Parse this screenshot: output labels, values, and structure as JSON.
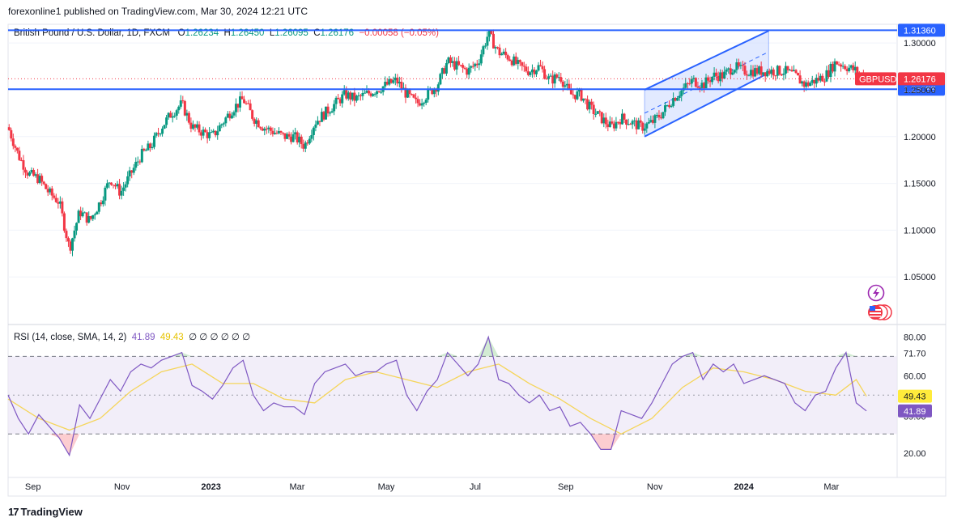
{
  "header": {
    "published": "forexonline1 published on TradingView.com, Mar 30, 2024 12:21 UTC"
  },
  "legend": {
    "title": "British Pound / U.S. Dollar, 1D, FXCM",
    "o_label": "O",
    "o": "1.26234",
    "h_label": "H",
    "h": "1.26450",
    "l_label": "L",
    "l": "1.26095",
    "c_label": "C",
    "c": "1.26176",
    "change": "−0.00058 (−0.05%)"
  },
  "rsi_legend": {
    "title": "RSI (14, close, SMA, 14, 2)",
    "rsi": "41.89",
    "sma": "49.43",
    "icons": "∅ ∅ ∅     ∅ ∅ ∅"
  },
  "footer": {
    "brand": "TradingView",
    "mark": "17"
  },
  "colors": {
    "up": "#089981",
    "down": "#f23645",
    "level_line": "#2962ff",
    "channel_fill": "#cfdcff",
    "rsi_line": "#7e57c2",
    "sma_line": "#f5d55a",
    "rsi_band": "#ede7f6"
  },
  "icons": [
    "lightning-icon",
    "us-flag-icon"
  ],
  "chart_data": [
    {
      "type": "candlestick",
      "symbol": "GBPUSD",
      "price_axis": [
        "1.30000",
        "1.25000",
        "1.20000",
        "1.15000",
        "1.10000",
        "1.05000"
      ],
      "ylim": [
        1.0,
        1.32
      ],
      "levels": [
        {
          "label": "1.31360",
          "value": 1.3136
        },
        {
          "label": "1.25055",
          "value": 1.25055
        }
      ],
      "last_price": {
        "symbol": "GBPUSD",
        "label": "1.26176",
        "value": 1.26176
      },
      "time_axis": [
        "Sep",
        "Nov",
        "2023",
        "Mar",
        "May",
        "Jul",
        "Sep",
        "Nov",
        "2024",
        "Mar"
      ],
      "time_range": [
        "2022-08-15",
        "2024-04-15"
      ],
      "close_path": [
        [
          "2022-08-15",
          1.21
        ],
        [
          "2022-08-22",
          1.18
        ],
        [
          "2022-08-29",
          1.16
        ],
        [
          "2022-09-05",
          1.155
        ],
        [
          "2022-09-12",
          1.14
        ],
        [
          "2022-09-19",
          1.13
        ],
        [
          "2022-09-26",
          1.08
        ],
        [
          "2022-10-03",
          1.12
        ],
        [
          "2022-10-10",
          1.11
        ],
        [
          "2022-10-17",
          1.13
        ],
        [
          "2022-10-24",
          1.155
        ],
        [
          "2022-10-31",
          1.14
        ],
        [
          "2022-11-07",
          1.16
        ],
        [
          "2022-11-14",
          1.18
        ],
        [
          "2022-11-21",
          1.19
        ],
        [
          "2022-11-28",
          1.21
        ],
        [
          "2022-12-05",
          1.225
        ],
        [
          "2022-12-12",
          1.235
        ],
        [
          "2022-12-19",
          1.21
        ],
        [
          "2022-12-26",
          1.205
        ],
        [
          "2023-01-02",
          1.2
        ],
        [
          "2023-01-09",
          1.215
        ],
        [
          "2023-01-16",
          1.23
        ],
        [
          "2023-01-23",
          1.24
        ],
        [
          "2023-01-30",
          1.22
        ],
        [
          "2023-02-06",
          1.21
        ],
        [
          "2023-02-13",
          1.205
        ],
        [
          "2023-02-20",
          1.2
        ],
        [
          "2023-02-27",
          1.2
        ],
        [
          "2023-03-06",
          1.19
        ],
        [
          "2023-03-13",
          1.215
        ],
        [
          "2023-03-20",
          1.225
        ],
        [
          "2023-03-27",
          1.235
        ],
        [
          "2023-04-03",
          1.245
        ],
        [
          "2023-04-10",
          1.24
        ],
        [
          "2023-04-17",
          1.245
        ],
        [
          "2023-04-24",
          1.25
        ],
        [
          "2023-05-01",
          1.255
        ],
        [
          "2023-05-08",
          1.26
        ],
        [
          "2023-05-15",
          1.245
        ],
        [
          "2023-05-22",
          1.235
        ],
        [
          "2023-05-29",
          1.245
        ],
        [
          "2023-06-05",
          1.255
        ],
        [
          "2023-06-12",
          1.28
        ],
        [
          "2023-06-19",
          1.275
        ],
        [
          "2023-06-26",
          1.27
        ],
        [
          "2023-07-03",
          1.28
        ],
        [
          "2023-07-10",
          1.31
        ],
        [
          "2023-07-17",
          1.29
        ],
        [
          "2023-07-24",
          1.285
        ],
        [
          "2023-07-31",
          1.275
        ],
        [
          "2023-08-07",
          1.27
        ],
        [
          "2023-08-14",
          1.275
        ],
        [
          "2023-08-21",
          1.26
        ],
        [
          "2023-08-28",
          1.265
        ],
        [
          "2023-09-04",
          1.245
        ],
        [
          "2023-09-11",
          1.245
        ],
        [
          "2023-09-18",
          1.23
        ],
        [
          "2023-09-25",
          1.22
        ],
        [
          "2023-10-02",
          1.21
        ],
        [
          "2023-10-09",
          1.22
        ],
        [
          "2023-10-16",
          1.215
        ],
        [
          "2023-10-23",
          1.21
        ],
        [
          "2023-10-30",
          1.215
        ],
        [
          "2023-11-06",
          1.225
        ],
        [
          "2023-11-13",
          1.24
        ],
        [
          "2023-11-20",
          1.25
        ],
        [
          "2023-11-27",
          1.26
        ],
        [
          "2023-12-04",
          1.255
        ],
        [
          "2023-12-11",
          1.265
        ],
        [
          "2023-12-18",
          1.265
        ],
        [
          "2023-12-25",
          1.275
        ],
        [
          "2024-01-01",
          1.27
        ],
        [
          "2024-01-08",
          1.27
        ],
        [
          "2024-01-15",
          1.27
        ],
        [
          "2024-01-22",
          1.27
        ],
        [
          "2024-01-29",
          1.27
        ],
        [
          "2024-02-05",
          1.265
        ],
        [
          "2024-02-12",
          1.255
        ],
        [
          "2024-02-19",
          1.26
        ],
        [
          "2024-02-26",
          1.265
        ],
        [
          "2024-03-04",
          1.28
        ],
        [
          "2024-03-11",
          1.275
        ],
        [
          "2024-03-18",
          1.27
        ],
        [
          "2024-03-25",
          1.262
        ]
      ],
      "channel": {
        "lower": [
          [
            "2023-10-25",
            1.2
          ],
          [
            "2024-01-18",
            1.268
          ]
        ],
        "upper": [
          [
            "2023-10-25",
            1.25
          ],
          [
            "2024-01-18",
            1.313
          ]
        ]
      }
    },
    {
      "type": "line",
      "title": "RSI (14, close, SMA, 14, 2)",
      "y_axis": [
        "80.00",
        "71.70",
        "60.00",
        "39.06",
        "20.00"
      ],
      "ylim": [
        8,
        86
      ],
      "bands": [
        70,
        30
      ],
      "mid": 50,
      "time_range": [
        "2022-08-15",
        "2024-04-15"
      ],
      "series": [
        {
          "name": "RSI",
          "points": [
            [
              "2022-08-15",
              50
            ],
            [
              "2022-08-22",
              38
            ],
            [
              "2022-08-29",
              30
            ],
            [
              "2022-09-05",
              40
            ],
            [
              "2022-09-12",
              34
            ],
            [
              "2022-09-19",
              28
            ],
            [
              "2022-09-26",
              19
            ],
            [
              "2022-10-03",
              45
            ],
            [
              "2022-10-10",
              38
            ],
            [
              "2022-10-17",
              48
            ],
            [
              "2022-10-24",
              58
            ],
            [
              "2022-10-31",
              52
            ],
            [
              "2022-11-07",
              62
            ],
            [
              "2022-11-14",
              66
            ],
            [
              "2022-11-21",
              64
            ],
            [
              "2022-11-28",
              68
            ],
            [
              "2022-12-05",
              70
            ],
            [
              "2022-12-12",
              72
            ],
            [
              "2022-12-19",
              55
            ],
            [
              "2022-12-26",
              52
            ],
            [
              "2023-01-02",
              48
            ],
            [
              "2023-01-09",
              55
            ],
            [
              "2023-01-16",
              64
            ],
            [
              "2023-01-23",
              68
            ],
            [
              "2023-01-30",
              50
            ],
            [
              "2023-02-06",
              42
            ],
            [
              "2023-02-13",
              46
            ],
            [
              "2023-02-20",
              44
            ],
            [
              "2023-02-27",
              44
            ],
            [
              "2023-03-06",
              40
            ],
            [
              "2023-03-13",
              56
            ],
            [
              "2023-03-20",
              62
            ],
            [
              "2023-03-27",
              64
            ],
            [
              "2023-04-03",
              66
            ],
            [
              "2023-04-10",
              60
            ],
            [
              "2023-04-17",
              62
            ],
            [
              "2023-04-24",
              62
            ],
            [
              "2023-05-01",
              66
            ],
            [
              "2023-05-08",
              68
            ],
            [
              "2023-05-15",
              50
            ],
            [
              "2023-05-22",
              42
            ],
            [
              "2023-05-29",
              52
            ],
            [
              "2023-06-05",
              58
            ],
            [
              "2023-06-12",
              72
            ],
            [
              "2023-06-19",
              66
            ],
            [
              "2023-06-26",
              60
            ],
            [
              "2023-07-03",
              66
            ],
            [
              "2023-07-10",
              80
            ],
            [
              "2023-07-17",
              58
            ],
            [
              "2023-07-24",
              56
            ],
            [
              "2023-07-31",
              50
            ],
            [
              "2023-08-07",
              46
            ],
            [
              "2023-08-14",
              50
            ],
            [
              "2023-08-21",
              42
            ],
            [
              "2023-08-28",
              44
            ],
            [
              "2023-09-04",
              34
            ],
            [
              "2023-09-11",
              36
            ],
            [
              "2023-09-18",
              30
            ],
            [
              "2023-09-25",
              22
            ],
            [
              "2023-10-02",
              22
            ],
            [
              "2023-10-09",
              42
            ],
            [
              "2023-10-16",
              40
            ],
            [
              "2023-10-23",
              38
            ],
            [
              "2023-10-30",
              46
            ],
            [
              "2023-11-06",
              56
            ],
            [
              "2023-11-13",
              66
            ],
            [
              "2023-11-20",
              70
            ],
            [
              "2023-11-27",
              72
            ],
            [
              "2023-12-04",
              58
            ],
            [
              "2023-12-11",
              66
            ],
            [
              "2023-12-18",
              62
            ],
            [
              "2023-12-25",
              66
            ],
            [
              "2024-01-01",
              56
            ],
            [
              "2024-01-08",
              58
            ],
            [
              "2024-01-15",
              60
            ],
            [
              "2024-01-22",
              58
            ],
            [
              "2024-01-29",
              56
            ],
            [
              "2024-02-05",
              46
            ],
            [
              "2024-02-12",
              42
            ],
            [
              "2024-02-19",
              50
            ],
            [
              "2024-02-26",
              52
            ],
            [
              "2024-03-04",
              64
            ],
            [
              "2024-03-11",
              72
            ],
            [
              "2024-03-18",
              46
            ],
            [
              "2024-03-25",
              41.89
            ]
          ]
        },
        {
          "name": "SMA",
          "points": [
            [
              "2022-08-15",
              48
            ],
            [
              "2022-09-05",
              38
            ],
            [
              "2022-09-26",
              32
            ],
            [
              "2022-10-17",
              38
            ],
            [
              "2022-11-07",
              52
            ],
            [
              "2022-11-28",
              62
            ],
            [
              "2022-12-19",
              66
            ],
            [
              "2023-01-09",
              56
            ],
            [
              "2023-01-30",
              56
            ],
            [
              "2023-02-20",
              48
            ],
            [
              "2023-03-13",
              46
            ],
            [
              "2023-04-03",
              58
            ],
            [
              "2023-04-24",
              62
            ],
            [
              "2023-05-15",
              58
            ],
            [
              "2023-06-05",
              54
            ],
            [
              "2023-06-26",
              62
            ],
            [
              "2023-07-17",
              66
            ],
            [
              "2023-08-07",
              56
            ],
            [
              "2023-08-28",
              48
            ],
            [
              "2023-09-18",
              38
            ],
            [
              "2023-10-09",
              30
            ],
            [
              "2023-10-30",
              38
            ],
            [
              "2023-11-20",
              54
            ],
            [
              "2023-12-11",
              64
            ],
            [
              "2024-01-01",
              62
            ],
            [
              "2024-01-22",
              58
            ],
            [
              "2024-02-12",
              52
            ],
            [
              "2024-03-04",
              50
            ],
            [
              "2024-03-18",
              58
            ],
            [
              "2024-03-25",
              49.43
            ]
          ]
        }
      ]
    }
  ]
}
